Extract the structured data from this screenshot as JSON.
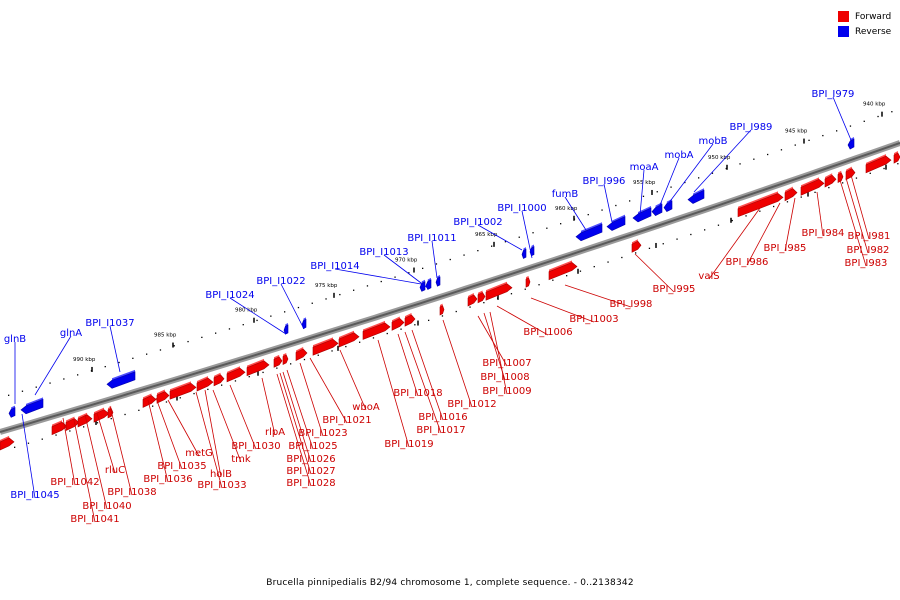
{
  "legend": {
    "forward": {
      "label": "Forward",
      "color": "#ee0000"
    },
    "reverse": {
      "label": "Reverse",
      "color": "#0000ee"
    }
  },
  "caption": "Brucella pinnipedialis B2/94 chromosome 1, complete sequence. - 0..2138342",
  "scale_labels": [
    "990 kbp",
    "985 kbp",
    "980 kbp",
    "975 kbp",
    "970 kbp",
    "965 kbp",
    "960 kbp",
    "955 kbp",
    "950 kbp",
    "945 kbp",
    "940 kbp"
  ],
  "reverse_genes": [
    "glnB",
    "glnA",
    "BPI_I1037",
    "BPI_I1024",
    "BPI_I1022",
    "BPI_I1014",
    "BPI_I1013",
    "BPI_I1011",
    "BPI_I1002",
    "BPI_I1000",
    "fumB",
    "BPI_I996",
    "moaA",
    "mobA",
    "mobB",
    "BPI_I989",
    "BPI_I979",
    "BPI_I1045"
  ],
  "forward_genes": [
    "BPI_I1042",
    "BPI_I1040",
    "BPI_I1041",
    "rluC",
    "BPI_I1038",
    "metG",
    "BPI_I1035",
    "BPI_I1036",
    "tmk",
    "holB",
    "BPI_I1033",
    "BPI_I1030",
    "rlpA",
    "BPI_I1025",
    "BPI_I1026",
    "BPI_I1027",
    "BPI_I1028",
    "BPI_I1023",
    "BPI_I1021",
    "wboA",
    "BPI_I1019",
    "BPI_I1018",
    "BPI_I1017",
    "BPI_I1016",
    "BPI_I1012",
    "BPI_I1009",
    "BPI_I1008",
    "BPI_I1007",
    "BPI_I1006",
    "BPI_I1003",
    "BPI_I998",
    "BPI_I995",
    "valS",
    "BPI_I986",
    "BPI_I985",
    "BPI_I984",
    "BPI_I983",
    "BPI_I982",
    "BPI_I981"
  ]
}
